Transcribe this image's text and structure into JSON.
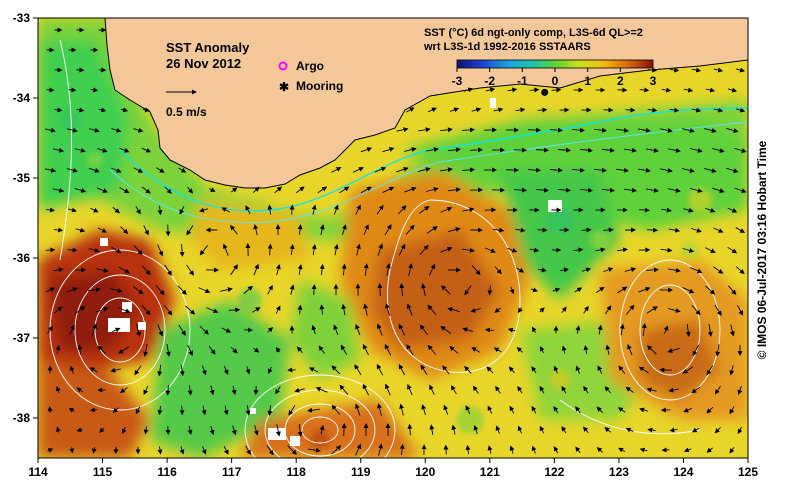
{
  "map": {
    "title": "SST Anomaly",
    "date": "26 Nov 2012",
    "vector_scale_label": "0.5 m/s",
    "legend": {
      "argo_label": "Argo",
      "argo_color": "#ff00ff",
      "mooring_label": "Mooring",
      "mooring_color": "#000000"
    },
    "colorbar": {
      "title_line1": "SST (°C) 6d ngt-only comp, L3S-6d QL>=2",
      "title_line2": "wrt L3S-1d 1992-2016 SSTAARS",
      "ticks": [
        "-3",
        "-2",
        "-1",
        "0",
        "1",
        "2",
        "3"
      ],
      "values": [
        -3,
        -2,
        -1,
        0,
        1,
        2,
        3
      ]
    },
    "x_axis": {
      "ticks": [
        "114",
        "115",
        "116",
        "117",
        "118",
        "119",
        "120",
        "121",
        "122",
        "123",
        "124",
        "125"
      ],
      "range": [
        114,
        125
      ]
    },
    "y_axis": {
      "ticks": [
        "-33",
        "-34",
        "-35",
        "-36",
        "-37",
        "-38"
      ],
      "range": [
        -38.5,
        -33
      ]
    },
    "credit": "©  IMOS 06-Jul-2017 03:16 Hobart Time",
    "land_color": "#f5c89a",
    "coast_color": "#000000",
    "shelf_contour_color": "#00e6ff",
    "mooring_position": [
      121.85,
      -33.93
    ]
  }
}
